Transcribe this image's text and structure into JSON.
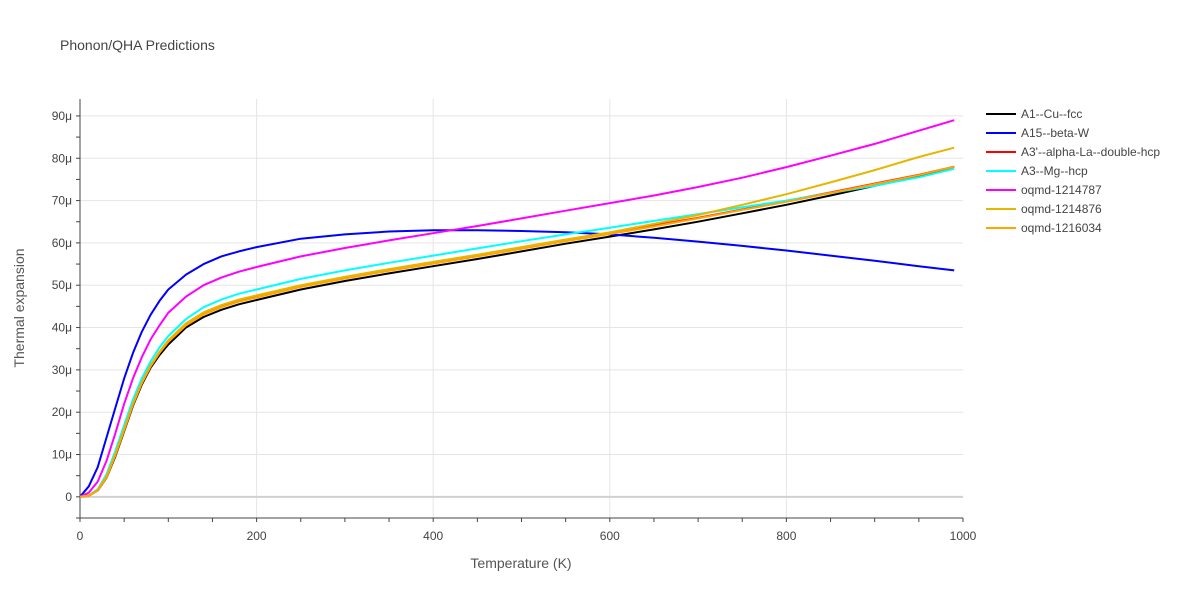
{
  "chart_data": {
    "type": "line",
    "title": "Phonon/QHA Predictions",
    "xlabel": "Temperature (K)",
    "ylabel": "Thermal expansion",
    "xlim": [
      0,
      1000
    ],
    "ylim": [
      -5,
      94
    ],
    "x_ticks": [
      0,
      200,
      400,
      600,
      800,
      1000
    ],
    "x_tick_labels": [
      "0",
      "200",
      "400",
      "600",
      "800",
      "1000"
    ],
    "y_ticks": [
      0,
      10,
      20,
      30,
      40,
      50,
      60,
      70,
      80,
      90
    ],
    "y_tick_labels": [
      "0",
      "10μ",
      "20μ",
      "30μ",
      "40μ",
      "50μ",
      "60μ",
      "70μ",
      "80μ",
      "90μ"
    ],
    "grid": true,
    "legend_position": "right",
    "x": [
      0,
      10,
      20,
      30,
      40,
      50,
      60,
      70,
      80,
      90,
      100,
      120,
      140,
      160,
      180,
      200,
      250,
      300,
      350,
      400,
      450,
      500,
      550,
      600,
      650,
      700,
      750,
      800,
      850,
      900,
      950,
      990
    ],
    "series": [
      {
        "name": "A1--Cu--fcc",
        "color": "#000000",
        "values": [
          0,
          0.3,
          1.5,
          4.5,
          9.5,
          15.5,
          21.5,
          26.5,
          30.5,
          33.5,
          36,
          40,
          42.5,
          44.2,
          45.5,
          46.5,
          49,
          51,
          52.8,
          54.5,
          56.2,
          58,
          59.8,
          61.5,
          63.2,
          65,
          67,
          69,
          71.2,
          73.5,
          75.8,
          78
        ]
      },
      {
        "name": "A15--beta-W",
        "color": "#0000ff",
        "values": [
          0,
          2.5,
          7,
          14,
          21,
          28,
          34,
          39,
          43,
          46.3,
          49,
          52.5,
          55,
          56.8,
          58,
          59,
          61,
          62,
          62.7,
          63,
          63,
          62.8,
          62.5,
          62,
          61.2,
          60.3,
          59.3,
          58.2,
          57,
          55.8,
          54.5,
          53.5
        ]
      },
      {
        "name": "A3'--alpha-La--double-hcp",
        "color": "#ff0000",
        "values": [
          0,
          0.3,
          1.6,
          4.8,
          10,
          16,
          22,
          27,
          31,
          34.2,
          36.8,
          40.7,
          43.3,
          45,
          46.3,
          47.3,
          49.8,
          51.8,
          53.6,
          55.3,
          57,
          58.8,
          60.6,
          62.3,
          64.1,
          65.9,
          67.9,
          69.9,
          71.9,
          74,
          76.1,
          78
        ]
      },
      {
        "name": "A3--Mg--hcp",
        "color": "#00ffff",
        "values": [
          0,
          0.3,
          1.8,
          5.3,
          10.8,
          17,
          23,
          28,
          32,
          35.3,
          38,
          42,
          44.8,
          46.6,
          48,
          49,
          51.5,
          53.5,
          55.3,
          57,
          58.7,
          60.4,
          62,
          63.6,
          65.2,
          66.8,
          68.4,
          70,
          71.8,
          73.5,
          75.5,
          77.5
        ]
      },
      {
        "name": "oqmd-1214787",
        "color": "#ff00ff",
        "values": [
          0,
          1,
          3.6,
          8.5,
          15,
          22,
          28,
          33,
          37.2,
          40.5,
          43.5,
          47.3,
          50,
          51.8,
          53.2,
          54.3,
          56.8,
          58.8,
          60.6,
          62.3,
          64,
          65.8,
          67.6,
          69.4,
          71.2,
          73.2,
          75.4,
          77.9,
          80.6,
          83.4,
          86.5,
          89
        ]
      },
      {
        "name": "oqmd-1214876",
        "color": "#e5b700",
        "values": [
          0,
          0.3,
          1.6,
          4.8,
          10,
          16,
          22,
          27,
          31,
          34.3,
          37,
          41,
          43.6,
          45.3,
          46.6,
          47.6,
          50,
          52,
          53.8,
          55.5,
          57.2,
          59,
          60.8,
          62.5,
          64.5,
          66.6,
          69,
          71.5,
          74.3,
          77.2,
          80.3,
          82.5
        ]
      },
      {
        "name": "oqmd-1216034",
        "color": "#ffa500",
        "values": [
          0,
          0.3,
          1.5,
          4.6,
          9.8,
          15.8,
          21.8,
          26.8,
          30.8,
          34,
          36.6,
          40.5,
          43.1,
          44.8,
          46.1,
          47.1,
          49.6,
          51.6,
          53.4,
          55.1,
          56.8,
          58.6,
          60.4,
          62.1,
          63.9,
          65.8,
          67.8,
          69.7,
          71.8,
          73.9,
          76,
          78
        ]
      }
    ]
  }
}
